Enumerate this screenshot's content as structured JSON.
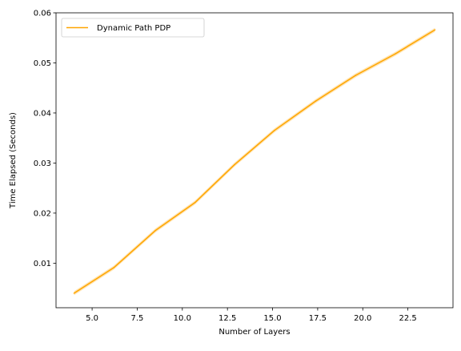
{
  "chart_data": {
    "type": "line",
    "xlabel": "Number of Layers",
    "ylabel": "Time Elapsed (Seconds)",
    "xlim": [
      3.0,
      25.0
    ],
    "ylim": [
      0.0011,
      0.06
    ],
    "x_ticks": [
      5.0,
      7.5,
      10.0,
      12.5,
      15.0,
      17.5,
      20.0,
      22.5
    ],
    "x_tick_labels": [
      "5.0",
      "7.5",
      "10.0",
      "12.5",
      "15.0",
      "17.5",
      "20.0",
      "22.5"
    ],
    "y_ticks": [
      0.01,
      0.02,
      0.03,
      0.04,
      0.05,
      0.06
    ],
    "y_tick_labels": [
      "0.01",
      "0.02",
      "0.03",
      "0.04",
      "0.05",
      "0.06"
    ],
    "grid": false,
    "legend_position": "top-left",
    "series": [
      {
        "name": "Dynamic Path PDP",
        "color": "#FFA500",
        "x": [
          4.0,
          6.2,
          8.5,
          10.7,
          12.9,
          15.1,
          17.4,
          19.6,
          21.8,
          24.0
        ],
        "y": [
          0.004,
          0.0091,
          0.0165,
          0.0221,
          0.0297,
          0.0365,
          0.0424,
          0.0475,
          0.0518,
          0.0566
        ],
        "band_width": 0.0004
      }
    ]
  }
}
